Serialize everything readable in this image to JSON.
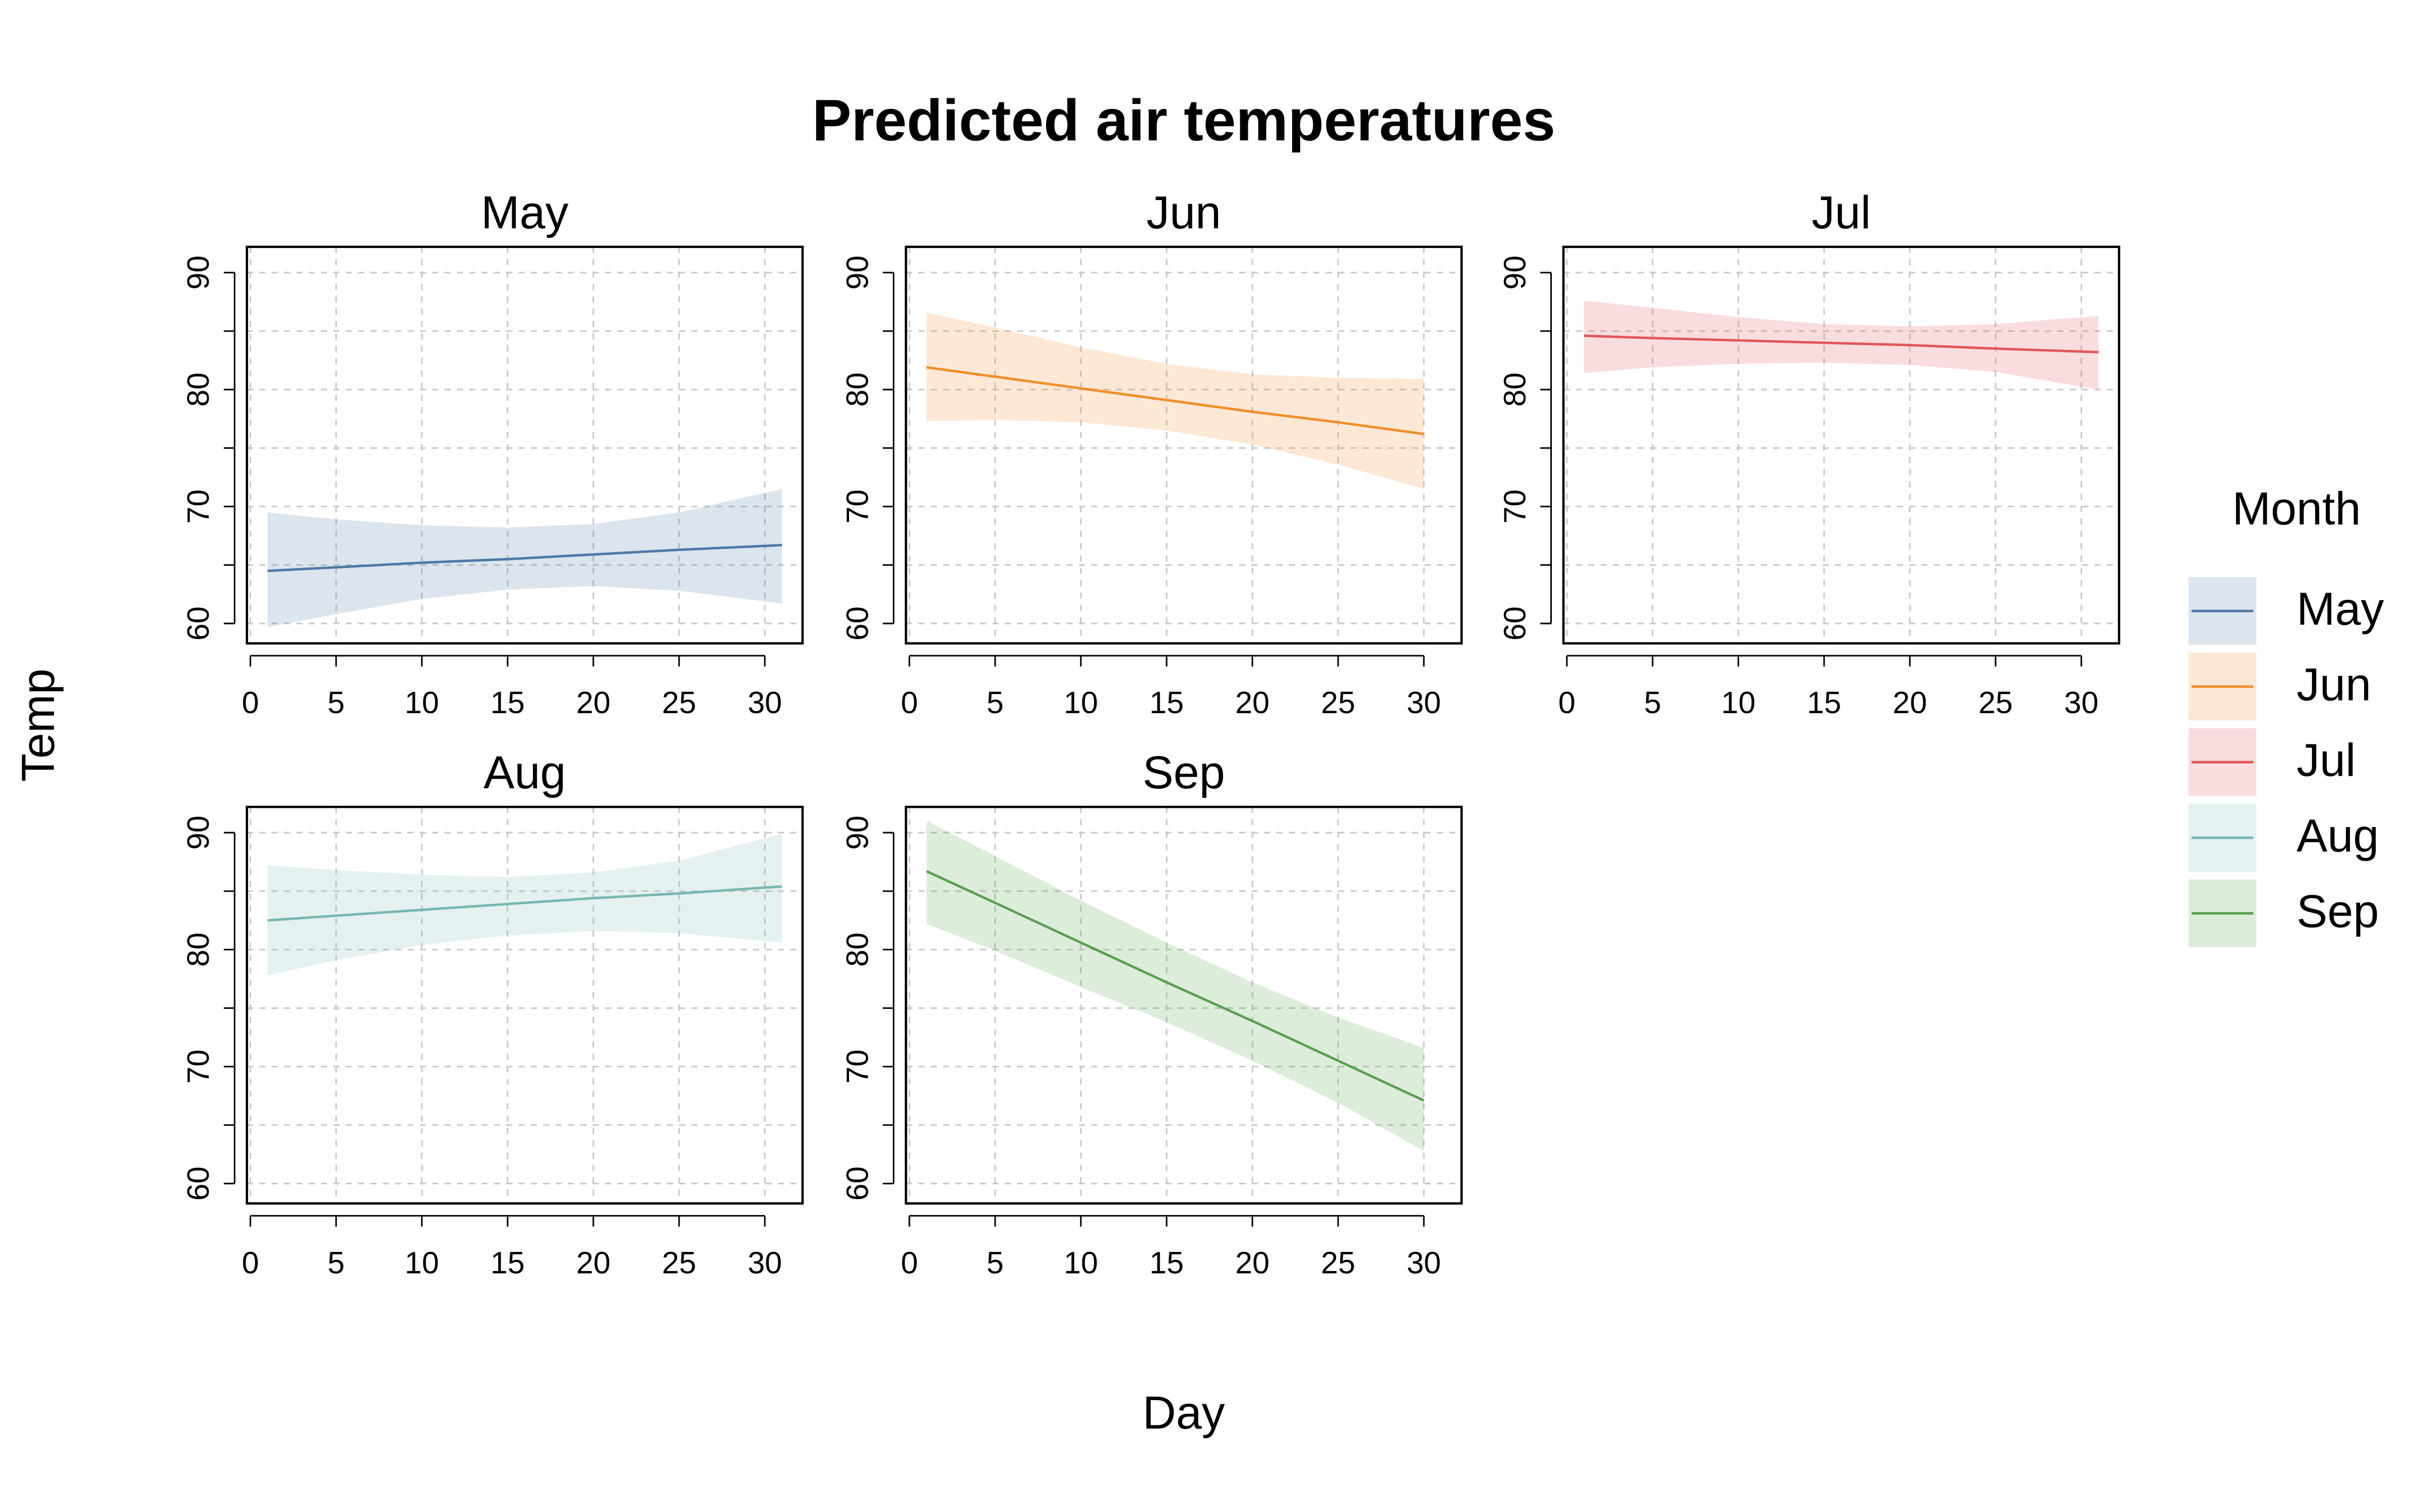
{
  "chart_data": {
    "type": "line",
    "title": "Predicted air temperatures",
    "x_label": "Day",
    "y_label": "Temp",
    "legend_title": "Month",
    "xlim": [
      -0.2,
      32.2
    ],
    "ylim": [
      58.3,
      92.2
    ],
    "xticks": [
      0,
      5,
      10,
      15,
      20,
      25,
      30
    ],
    "yticks": [
      60,
      70,
      80,
      90
    ],
    "yticks_minor": [
      65,
      75,
      85
    ],
    "grid": true,
    "series": [
      {
        "name": "May",
        "color": "#4e79a7",
        "x": [
          1,
          5,
          10,
          15,
          20,
          25,
          31
        ],
        "values": [
          64.5,
          64.8,
          65.2,
          65.5,
          65.9,
          66.3,
          66.7
        ],
        "upper": [
          69.5,
          68.9,
          68.4,
          68.2,
          68.5,
          69.5,
          71.5
        ],
        "lower": [
          59.7,
          60.8,
          62.1,
          62.9,
          63.2,
          62.8,
          61.7
        ]
      },
      {
        "name": "Jun",
        "color": "#f28e2b",
        "x": [
          1,
          5,
          10,
          15,
          20,
          25,
          30
        ],
        "values": [
          81.9,
          81.1,
          80.1,
          79.1,
          78.1,
          77.2,
          76.2
        ],
        "upper": [
          86.6,
          85.3,
          83.6,
          82.2,
          81.3,
          81.0,
          80.9
        ],
        "lower": [
          77.3,
          77.4,
          77.2,
          76.5,
          75.3,
          73.6,
          71.5
        ]
      },
      {
        "name": "Jul",
        "color": "#e15759",
        "x": [
          1,
          5,
          10,
          15,
          20,
          25,
          31
        ],
        "values": [
          84.6,
          84.4,
          84.2,
          84.0,
          83.8,
          83.5,
          83.2
        ],
        "upper": [
          87.6,
          87.0,
          86.2,
          85.6,
          85.4,
          85.6,
          86.3
        ],
        "lower": [
          81.4,
          81.9,
          82.2,
          82.3,
          82.1,
          81.5,
          80.0
        ]
      },
      {
        "name": "Aug",
        "color": "#76b7b2",
        "x": [
          1,
          5,
          10,
          15,
          20,
          25,
          31
        ],
        "values": [
          82.5,
          82.9,
          83.4,
          83.9,
          84.4,
          84.8,
          85.4
        ],
        "upper": [
          87.2,
          86.8,
          86.4,
          86.2,
          86.6,
          87.6,
          89.9
        ],
        "lower": [
          77.8,
          79.1,
          80.4,
          81.2,
          81.6,
          81.4,
          80.6
        ]
      },
      {
        "name": "Sep",
        "color": "#59a14f",
        "x": [
          1,
          5,
          10,
          15,
          20,
          25,
          30
        ],
        "values": [
          86.7,
          84.0,
          80.6,
          77.2,
          73.9,
          70.5,
          67.1
        ],
        "upper": [
          91.0,
          88.0,
          84.2,
          80.6,
          77.2,
          74.2,
          71.6
        ],
        "lower": [
          82.2,
          79.9,
          76.8,
          73.8,
          70.5,
          66.9,
          62.8
        ]
      }
    ]
  }
}
